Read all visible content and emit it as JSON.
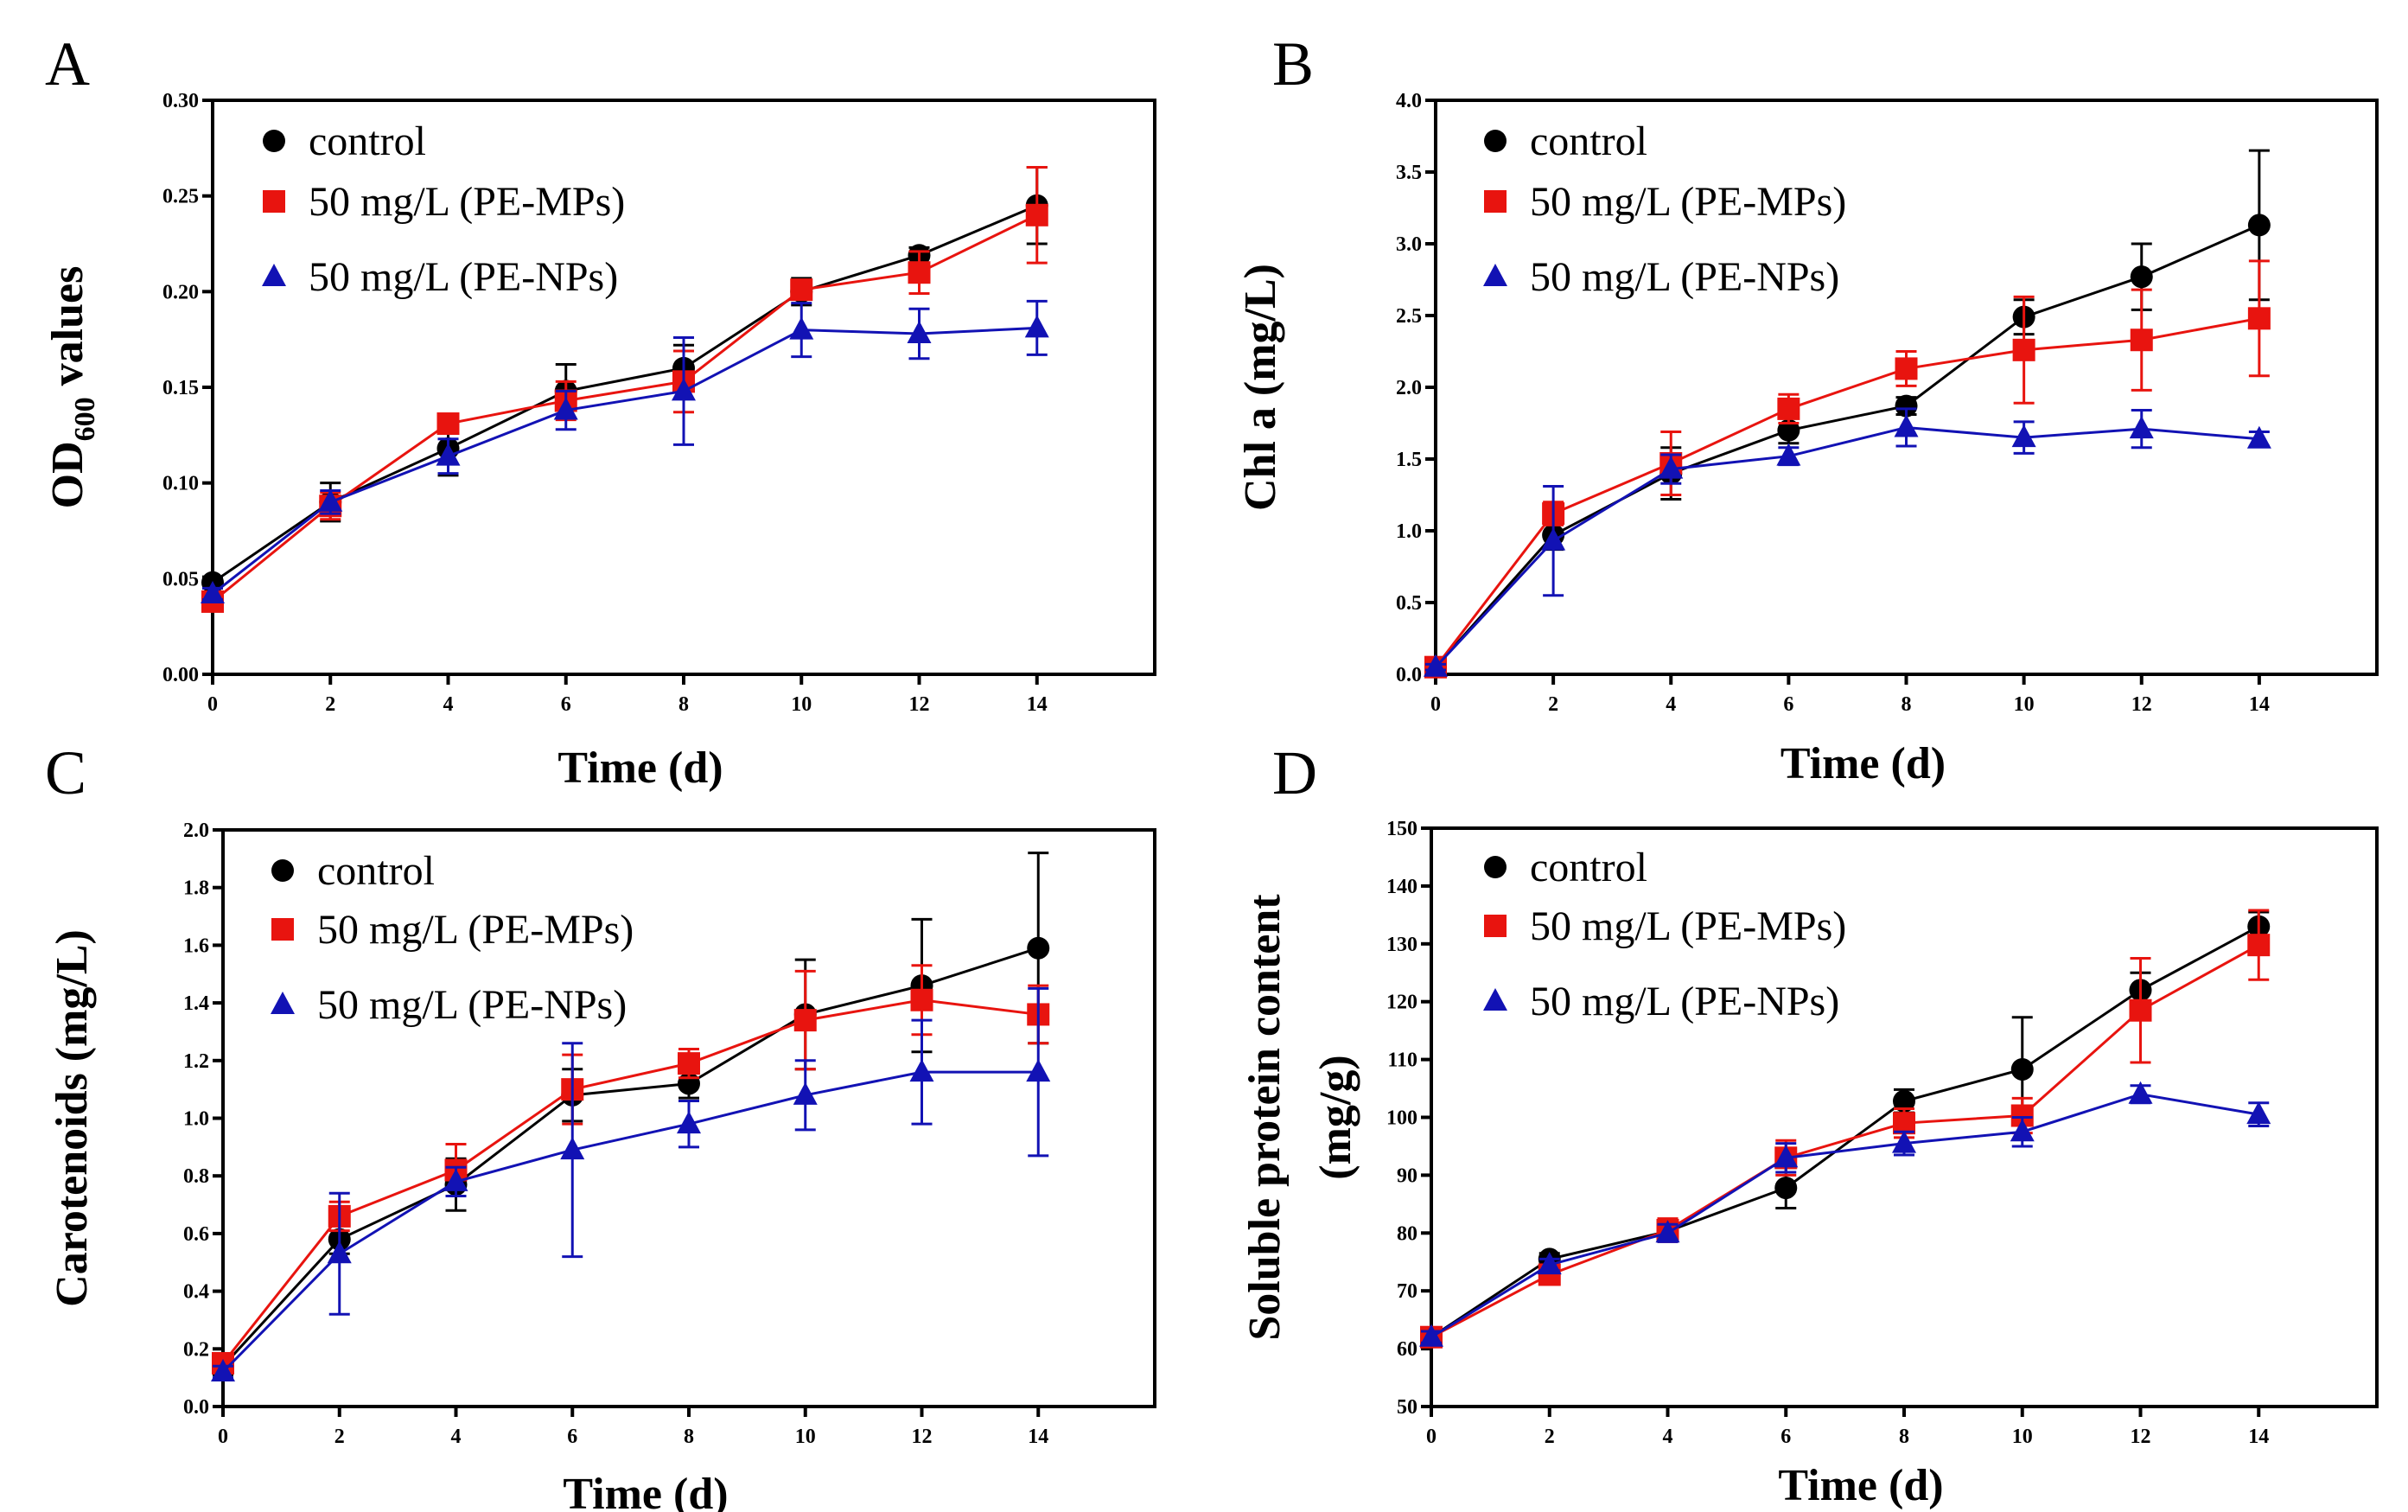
{
  "figure": {
    "colors": {
      "control": "#000000",
      "mps": "#e8140f",
      "nps": "#1212b4"
    }
  },
  "chart_data": [
    {
      "panel": "A",
      "type": "line",
      "xlabel": "Time (d)",
      "ylabel_main": "OD",
      "ylabel_sub": "600",
      "ylabel_rest": " values",
      "x": [
        0,
        2,
        4,
        6,
        8,
        10,
        12,
        14
      ],
      "xlim": [
        0,
        16
      ],
      "ylim": [
        0,
        0.3
      ],
      "xticks": [
        0,
        2,
        4,
        6,
        8,
        10,
        12,
        14
      ],
      "yticks": [
        0,
        0.05,
        0.1,
        0.15,
        0.2,
        0.25,
        0.3
      ],
      "ytick_labels": [
        "0.00",
        "0.05",
        "0.10",
        "0.15",
        "0.20",
        "0.25",
        "0.30"
      ],
      "legend_position": "top-left",
      "series": [
        {
          "name": "control",
          "marker": "circle",
          "values": [
            0.048,
            0.09,
            0.118,
            0.148,
            0.16,
            0.2,
            0.219,
            0.245
          ],
          "errors": [
            0.003,
            0.01,
            0.014,
            0.014,
            0.012,
            0.007,
            0.004,
            0.02
          ]
        },
        {
          "name": "50 mg/L (PE-MPs)",
          "marker": "square",
          "values": [
            0.038,
            0.088,
            0.131,
            0.143,
            0.153,
            0.201,
            0.21,
            0.24
          ],
          "errors": [
            0.003,
            0.007,
            0.005,
            0.01,
            0.016,
            0.005,
            0.011,
            0.025
          ]
        },
        {
          "name": "50 mg/L (PE-NPs)",
          "marker": "triangle",
          "values": [
            0.042,
            0.09,
            0.114,
            0.138,
            0.148,
            0.18,
            0.178,
            0.181
          ],
          "errors": [
            0.003,
            0.006,
            0.009,
            0.01,
            0.028,
            0.014,
            0.013,
            0.014
          ]
        }
      ]
    },
    {
      "panel": "B",
      "type": "line",
      "xlabel": "Time (d)",
      "ylabel_main": "Chl a (mg/L)",
      "x": [
        0,
        2,
        4,
        6,
        8,
        10,
        12,
        14
      ],
      "xlim": [
        0,
        16
      ],
      "ylim": [
        0,
        4
      ],
      "xticks": [
        0,
        2,
        4,
        6,
        8,
        10,
        12,
        14
      ],
      "yticks": [
        0,
        0.5,
        1,
        1.5,
        2,
        2.5,
        3,
        3.5,
        4
      ],
      "ytick_labels": [
        "0.0",
        "0.5",
        "1.0",
        "1.5",
        "2.0",
        "2.5",
        "3.0",
        "3.5",
        "4.0"
      ],
      "legend_position": "top-left",
      "series": [
        {
          "name": "control",
          "marker": "circle",
          "values": [
            0.05,
            0.97,
            1.4,
            1.7,
            1.87,
            2.49,
            2.77,
            3.13
          ],
          "errors": [
            0.02,
            0.1,
            0.18,
            0.09,
            0.06,
            0.12,
            0.23,
            0.52
          ]
        },
        {
          "name": "50 mg/L (PE-MPs)",
          "marker": "square",
          "values": [
            0.05,
            1.12,
            1.47,
            1.85,
            2.13,
            2.26,
            2.33,
            2.48
          ],
          "errors": [
            0.02,
            0.08,
            0.22,
            0.1,
            0.12,
            0.37,
            0.35,
            0.4
          ]
        },
        {
          "name": "50 mg/L (PE-NPs)",
          "marker": "triangle",
          "values": [
            0.05,
            0.93,
            1.43,
            1.52,
            1.72,
            1.65,
            1.71,
            1.64
          ],
          "errors": [
            0.02,
            0.38,
            0.1,
            0.06,
            0.13,
            0.11,
            0.13,
            0.05
          ]
        }
      ]
    },
    {
      "panel": "C",
      "type": "line",
      "xlabel": "Time (d)",
      "ylabel_main": "Carotenoids (mg/L)",
      "x": [
        0,
        2,
        4,
        6,
        8,
        10,
        12,
        14
      ],
      "xlim": [
        0,
        16
      ],
      "ylim": [
        0,
        2
      ],
      "xticks": [
        0,
        2,
        4,
        6,
        8,
        10,
        12,
        14
      ],
      "yticks": [
        0,
        0.2,
        0.4,
        0.6,
        0.8,
        1,
        1.2,
        1.4,
        1.6,
        1.8,
        2
      ],
      "ytick_labels": [
        "0.0",
        "0.2",
        "0.4",
        "0.6",
        "0.8",
        "1.0",
        "1.2",
        "1.4",
        "1.6",
        "1.8",
        "2.0"
      ],
      "legend_position": "top-left",
      "series": [
        {
          "name": "control",
          "marker": "circle",
          "values": [
            0.14,
            0.58,
            0.77,
            1.08,
            1.12,
            1.36,
            1.46,
            1.59
          ],
          "errors": [
            0.03,
            0.05,
            0.09,
            0.09,
            0.05,
            0.19,
            0.23,
            0.33
          ]
        },
        {
          "name": "50 mg/L (PE-MPs)",
          "marker": "square",
          "values": [
            0.15,
            0.66,
            0.82,
            1.1,
            1.19,
            1.34,
            1.41,
            1.36
          ],
          "errors": [
            0.03,
            0.05,
            0.09,
            0.12,
            0.05,
            0.17,
            0.12,
            0.1
          ]
        },
        {
          "name": "50 mg/L (PE-NPs)",
          "marker": "triangle",
          "values": [
            0.12,
            0.53,
            0.78,
            0.89,
            0.98,
            1.08,
            1.16,
            1.16
          ],
          "errors": [
            0.02,
            0.21,
            0.05,
            0.37,
            0.08,
            0.12,
            0.18,
            0.29
          ]
        }
      ]
    },
    {
      "panel": "D",
      "type": "line",
      "xlabel": "Time (d)",
      "ylabel_main": "Soluble protein content",
      "ylabel_line2": "(mg/g)",
      "x": [
        0,
        2,
        4,
        6,
        8,
        10,
        12,
        14
      ],
      "xlim": [
        0,
        16
      ],
      "ylim": [
        50,
        150
      ],
      "xticks": [
        0,
        2,
        4,
        6,
        8,
        10,
        12,
        14
      ],
      "yticks": [
        50,
        60,
        70,
        80,
        90,
        100,
        110,
        120,
        130,
        140,
        150
      ],
      "ytick_labels": [
        "50",
        "60",
        "70",
        "80",
        "90",
        "100",
        "110",
        "120",
        "130",
        "140",
        "150"
      ],
      "legend_position": "top-left",
      "series": [
        {
          "name": "control",
          "marker": "circle",
          "values": [
            62,
            75.5,
            80.3,
            87.8,
            102.8,
            108.3,
            122,
            133
          ],
          "errors": [
            1,
            1,
            1.5,
            3.5,
            2,
            9,
            3,
            2.5
          ]
        },
        {
          "name": "50 mg/L (PE-MPs)",
          "marker": "square",
          "values": [
            62,
            72.8,
            80.5,
            93,
            99,
            100.3,
            118.5,
            129.8
          ],
          "errors": [
            1,
            1,
            2,
            3,
            2.5,
            3,
            9,
            6
          ]
        },
        {
          "name": "50 mg/L (PE-NPs)",
          "marker": "triangle",
          "values": [
            62,
            74.5,
            80,
            93,
            95.5,
            97.5,
            104,
            100.5
          ],
          "errors": [
            1,
            1,
            1.5,
            2.5,
            2,
            2.5,
            1.5,
            2
          ]
        }
      ]
    }
  ]
}
